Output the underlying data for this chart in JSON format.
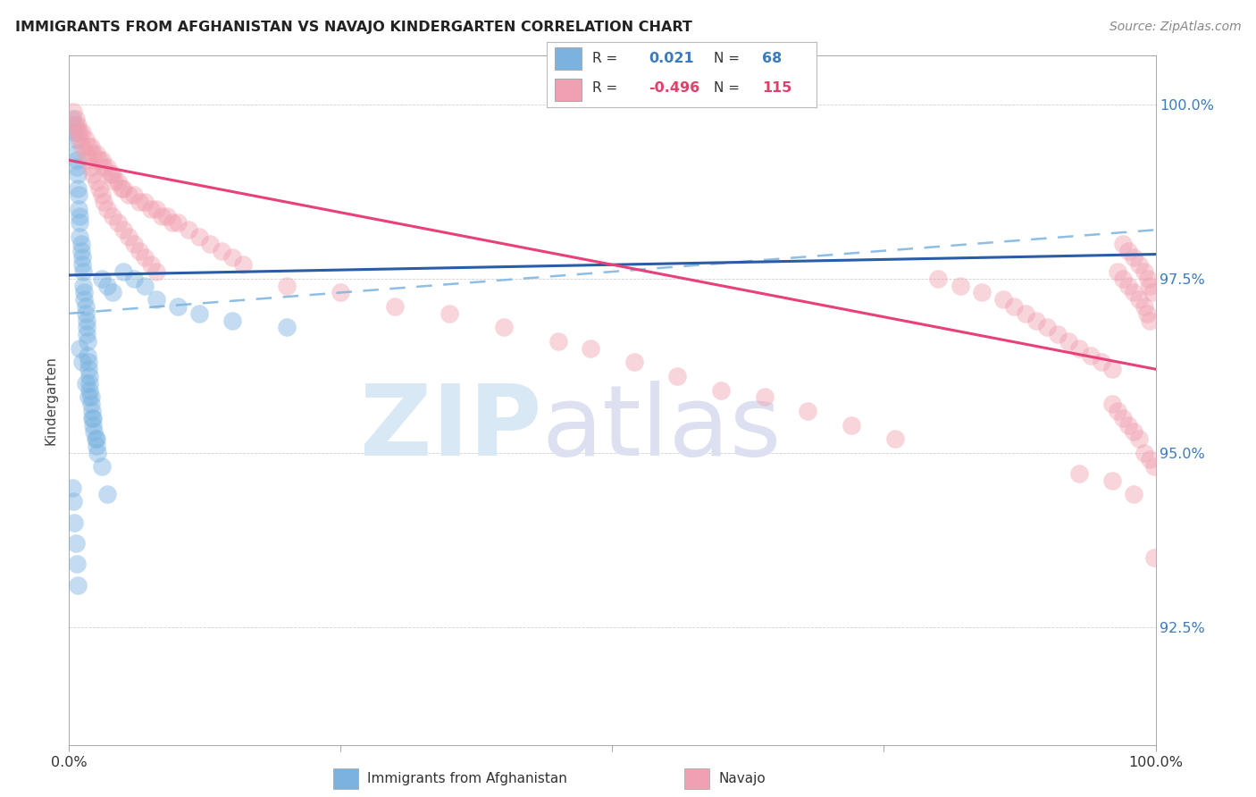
{
  "title": "IMMIGRANTS FROM AFGHANISTAN VS NAVAJO KINDERGARTEN CORRELATION CHART",
  "source": "Source: ZipAtlas.com",
  "ylabel": "Kindergarten",
  "ytick_labels": [
    "92.5%",
    "95.0%",
    "97.5%",
    "100.0%"
  ],
  "ytick_values": [
    0.925,
    0.95,
    0.975,
    1.0
  ],
  "xlim": [
    0.0,
    1.0
  ],
  "ylim": [
    0.908,
    1.007
  ],
  "blue_color": "#7ab3e0",
  "pink_color": "#f0a0b0",
  "blue_line_color": "#2a5ca8",
  "pink_line_color": "#e8407a",
  "blue_dash_color": "#7ab3e0",
  "legend_blue_r": "0.021",
  "legend_blue_n": "68",
  "legend_pink_r": "-0.496",
  "legend_pink_n": "115",
  "blue_points_x": [
    0.003,
    0.004,
    0.005,
    0.006,
    0.006,
    0.007,
    0.007,
    0.008,
    0.008,
    0.009,
    0.009,
    0.01,
    0.01,
    0.01,
    0.011,
    0.011,
    0.012,
    0.012,
    0.013,
    0.013,
    0.014,
    0.014,
    0.015,
    0.015,
    0.016,
    0.016,
    0.016,
    0.017,
    0.017,
    0.018,
    0.018,
    0.019,
    0.019,
    0.019,
    0.02,
    0.02,
    0.021,
    0.021,
    0.022,
    0.023,
    0.024,
    0.025,
    0.026,
    0.03,
    0.035,
    0.04,
    0.05,
    0.06,
    0.07,
    0.08,
    0.1,
    0.12,
    0.15,
    0.2,
    0.01,
    0.012,
    0.015,
    0.018,
    0.022,
    0.025,
    0.03,
    0.035,
    0.003,
    0.004,
    0.005,
    0.006,
    0.007,
    0.008
  ],
  "blue_points_y": [
    0.998,
    0.997,
    0.996,
    0.995,
    0.993,
    0.992,
    0.991,
    0.99,
    0.988,
    0.987,
    0.985,
    0.984,
    0.983,
    0.981,
    0.98,
    0.979,
    0.978,
    0.977,
    0.976,
    0.974,
    0.973,
    0.972,
    0.971,
    0.97,
    0.969,
    0.968,
    0.967,
    0.966,
    0.964,
    0.963,
    0.962,
    0.961,
    0.96,
    0.959,
    0.958,
    0.957,
    0.956,
    0.955,
    0.954,
    0.953,
    0.952,
    0.951,
    0.95,
    0.975,
    0.974,
    0.973,
    0.976,
    0.975,
    0.974,
    0.972,
    0.971,
    0.97,
    0.969,
    0.968,
    0.965,
    0.963,
    0.96,
    0.958,
    0.955,
    0.952,
    0.948,
    0.944,
    0.945,
    0.943,
    0.94,
    0.937,
    0.934,
    0.931
  ],
  "pink_points_x": [
    0.004,
    0.006,
    0.008,
    0.01,
    0.012,
    0.015,
    0.018,
    0.02,
    0.022,
    0.025,
    0.028,
    0.03,
    0.032,
    0.035,
    0.038,
    0.04,
    0.042,
    0.045,
    0.048,
    0.05,
    0.055,
    0.06,
    0.065,
    0.07,
    0.075,
    0.08,
    0.085,
    0.09,
    0.095,
    0.1,
    0.11,
    0.12,
    0.13,
    0.14,
    0.15,
    0.16,
    0.006,
    0.008,
    0.01,
    0.012,
    0.015,
    0.018,
    0.02,
    0.022,
    0.025,
    0.028,
    0.03,
    0.032,
    0.035,
    0.04,
    0.045,
    0.05,
    0.055,
    0.06,
    0.065,
    0.07,
    0.075,
    0.08,
    0.2,
    0.25,
    0.3,
    0.35,
    0.4,
    0.45,
    0.48,
    0.52,
    0.56,
    0.6,
    0.64,
    0.68,
    0.72,
    0.76,
    0.8,
    0.82,
    0.84,
    0.86,
    0.87,
    0.88,
    0.89,
    0.9,
    0.91,
    0.92,
    0.93,
    0.94,
    0.95,
    0.96,
    0.965,
    0.97,
    0.975,
    0.98,
    0.985,
    0.99,
    0.992,
    0.995,
    0.97,
    0.975,
    0.98,
    0.985,
    0.99,
    0.993,
    0.995,
    0.997,
    0.96,
    0.965,
    0.97,
    0.975,
    0.98,
    0.985,
    0.99,
    0.995,
    0.999,
    0.999,
    0.93,
    0.96,
    0.98
  ],
  "pink_points_y": [
    0.999,
    0.998,
    0.997,
    0.996,
    0.996,
    0.995,
    0.994,
    0.994,
    0.993,
    0.993,
    0.992,
    0.992,
    0.991,
    0.991,
    0.99,
    0.99,
    0.989,
    0.989,
    0.988,
    0.988,
    0.987,
    0.987,
    0.986,
    0.986,
    0.985,
    0.985,
    0.984,
    0.984,
    0.983,
    0.983,
    0.982,
    0.981,
    0.98,
    0.979,
    0.978,
    0.977,
    0.997,
    0.996,
    0.995,
    0.994,
    0.993,
    0.992,
    0.991,
    0.99,
    0.989,
    0.988,
    0.987,
    0.986,
    0.985,
    0.984,
    0.983,
    0.982,
    0.981,
    0.98,
    0.979,
    0.978,
    0.977,
    0.976,
    0.974,
    0.973,
    0.971,
    0.97,
    0.968,
    0.966,
    0.965,
    0.963,
    0.961,
    0.959,
    0.958,
    0.956,
    0.954,
    0.952,
    0.975,
    0.974,
    0.973,
    0.972,
    0.971,
    0.97,
    0.969,
    0.968,
    0.967,
    0.966,
    0.965,
    0.964,
    0.963,
    0.962,
    0.976,
    0.975,
    0.974,
    0.973,
    0.972,
    0.971,
    0.97,
    0.969,
    0.98,
    0.979,
    0.978,
    0.977,
    0.976,
    0.975,
    0.974,
    0.973,
    0.957,
    0.956,
    0.955,
    0.954,
    0.953,
    0.952,
    0.95,
    0.949,
    0.948,
    0.935,
    0.947,
    0.946,
    0.944
  ]
}
